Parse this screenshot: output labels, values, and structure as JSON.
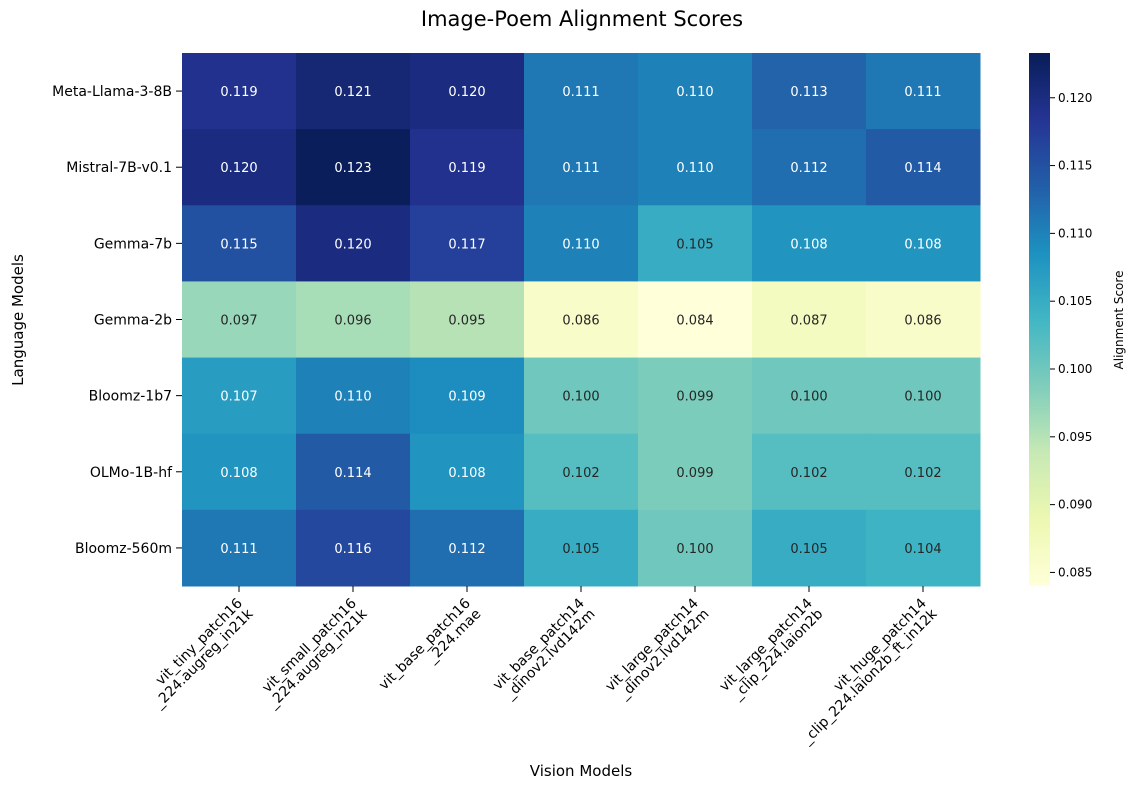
{
  "chart_data": {
    "type": "heatmap",
    "title": "Image-Poem Alignment Scores",
    "xlabel": "Vision Models",
    "ylabel": "Language Models",
    "colorbar_label": "Alignment Score",
    "colormap": "YlGnBu",
    "vmin": 0.084,
    "vmax": 0.1233,
    "colorbar_ticks": [
      "0.085",
      "0.090",
      "0.095",
      "0.100",
      "0.105",
      "0.110",
      "0.115",
      "0.120"
    ],
    "x_categories": [
      [
        "vit_tiny_patch16",
        "_224.augreg_in21k"
      ],
      [
        "vit_small_patch16",
        "_224.augreg_in21k"
      ],
      [
        "vit_base_patch16",
        "_224.mae"
      ],
      [
        "vit_base_patch14",
        "_dinov2.lvd142m"
      ],
      [
        "vit_large_patch14",
        "_dinov2.lvd142m"
      ],
      [
        "vit_large_patch14",
        "_clip_224.laion2b"
      ],
      [
        "vit_huge_patch14",
        "_clip_224.laion2b_ft_in12k"
      ]
    ],
    "y_categories": [
      "Meta-Llama-3-8B",
      "Mistral-7B-v0.1",
      "Gemma-7b",
      "Gemma-2b",
      "Bloomz-1b7",
      "OLMo-1B-hf",
      "Bloomz-560m"
    ],
    "labels": [
      [
        "0.119",
        "0.121",
        "0.120",
        "0.111",
        "0.110",
        "0.113",
        "0.111"
      ],
      [
        "0.120",
        "0.123",
        "0.119",
        "0.111",
        "0.110",
        "0.112",
        "0.114"
      ],
      [
        "0.115",
        "0.120",
        "0.117",
        "0.110",
        "0.105",
        "0.108",
        "0.108"
      ],
      [
        "0.097",
        "0.096",
        "0.095",
        "0.086",
        "0.084",
        "0.087",
        "0.086"
      ],
      [
        "0.107",
        "0.110",
        "0.109",
        "0.100",
        "0.099",
        "0.100",
        "0.100"
      ],
      [
        "0.108",
        "0.114",
        "0.108",
        "0.102",
        "0.099",
        "0.102",
        "0.102"
      ],
      [
        "0.111",
        "0.116",
        "0.112",
        "0.105",
        "0.100",
        "0.105",
        "0.104"
      ]
    ]
  }
}
